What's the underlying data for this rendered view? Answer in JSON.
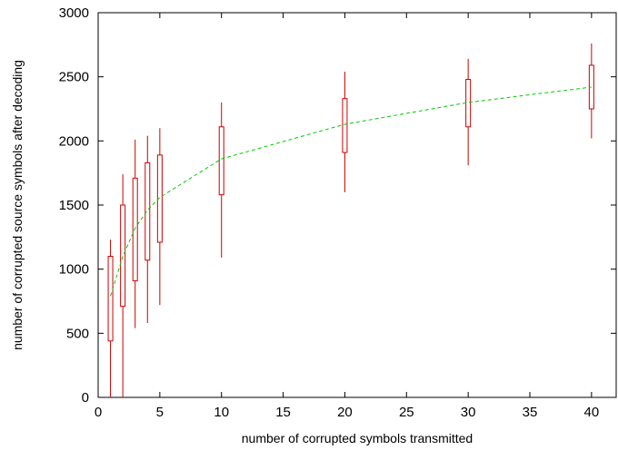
{
  "chart_data": {
    "type": "candlestick",
    "title": "",
    "xlabel": "number of corrupted symbols transmitted",
    "ylabel": "number of corrupted source symbols after decoding",
    "xlim": [
      0,
      42
    ],
    "ylim": [
      0,
      3000
    ],
    "xticks": [
      0,
      5,
      10,
      15,
      20,
      25,
      30,
      35,
      40
    ],
    "yticks": [
      0,
      500,
      1000,
      1500,
      2000,
      2500,
      3000
    ],
    "grid": false,
    "legend": "none",
    "colors": {
      "boxes": "#cc0000",
      "line": "#00cc00"
    },
    "boxes": [
      {
        "x": 1,
        "min": 0,
        "q1": 440,
        "q3": 1100,
        "max": 1230
      },
      {
        "x": 2,
        "min": 0,
        "q1": 710,
        "q3": 1500,
        "max": 1740
      },
      {
        "x": 3,
        "min": 540,
        "q1": 910,
        "q3": 1710,
        "max": 2010
      },
      {
        "x": 4,
        "min": 580,
        "q1": 1070,
        "q3": 1830,
        "max": 2040
      },
      {
        "x": 5,
        "min": 720,
        "q1": 1210,
        "q3": 1890,
        "max": 2100
      },
      {
        "x": 10,
        "min": 1090,
        "q1": 1580,
        "q3": 2110,
        "max": 2300
      },
      {
        "x": 20,
        "min": 1600,
        "q1": 1910,
        "q3": 2330,
        "max": 2540
      },
      {
        "x": 30,
        "min": 1810,
        "q1": 2110,
        "q3": 2480,
        "max": 2640
      },
      {
        "x": 40,
        "min": 2020,
        "q1": 2250,
        "q3": 2590,
        "max": 2760
      }
    ],
    "mean_line": {
      "x": [
        1,
        2,
        3,
        4,
        5,
        10,
        20,
        30,
        40
      ],
      "y": [
        790,
        1100,
        1320,
        1460,
        1560,
        1860,
        2130,
        2300,
        2420
      ]
    }
  }
}
